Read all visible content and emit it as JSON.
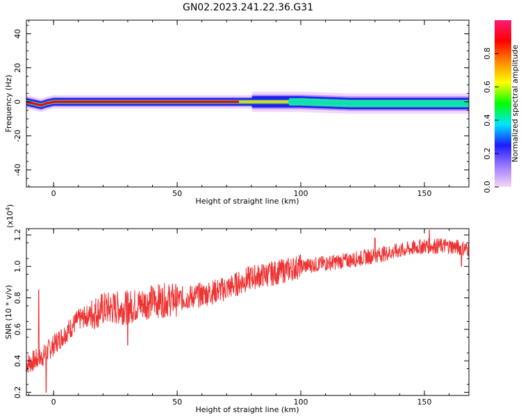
{
  "title": "GN02.2023.241.22.36.G31",
  "chart_data": [
    {
      "type": "heatmap",
      "xlabel": "Height of straight line (km)",
      "ylabel": "Frequency (Hz)",
      "xlim": [
        -11,
        168
      ],
      "ylim": [
        -50,
        48
      ],
      "xticks": [
        0,
        50,
        100,
        150
      ],
      "yticks": [
        40,
        20,
        0,
        -20,
        -40
      ],
      "colorbar": {
        "label": "Normalized spectral amplitude",
        "range": [
          0,
          1
        ],
        "ticks": [
          "0.0",
          "0.2",
          "0.4",
          "0.6",
          "0.8"
        ],
        "colors": [
          "#f7d6f7",
          "#9b7bff",
          "#1c1cff",
          "#00e5ff",
          "#00ff00",
          "#ffff00",
          "#ff8800",
          "#ff0000",
          "#ff1a75"
        ]
      },
      "band": {
        "center_hz": [
          {
            "x": -11,
            "y": 0
          },
          {
            "x": -8,
            "y": -1
          },
          {
            "x": -5,
            "y": -2
          },
          {
            "x": -3,
            "y": -1
          },
          {
            "x": 0,
            "y": 0
          },
          {
            "x": 50,
            "y": 0
          },
          {
            "x": 100,
            "y": 0
          },
          {
            "x": 120,
            "y": -1
          },
          {
            "x": 168,
            "y": -1
          }
        ],
        "peak_color_segments": [
          {
            "from": -11,
            "to": 75,
            "color": "#ff0000"
          },
          {
            "from": 75,
            "to": 95,
            "color": "#ffcc00"
          },
          {
            "from": 95,
            "to": 168,
            "color": "#00e5b0"
          }
        ]
      }
    },
    {
      "type": "line",
      "xlabel": "Height of straight line (km)",
      "ylabel": "SNR (10 * v/v)",
      "yunit": "(x10",
      "yunit_exp": "4",
      "yunit_close": ")",
      "xlim": [
        -11,
        168
      ],
      "ylim": [
        0.18,
        1.24
      ],
      "xticks": [
        0,
        50,
        100,
        150
      ],
      "yticks": [
        1.2,
        1.0,
        0.8,
        0.6,
        0.4,
        0.2
      ],
      "color": "#ee3333",
      "trend": [
        {
          "x": -11,
          "y": 0.38
        },
        {
          "x": -5,
          "y": 0.42
        },
        {
          "x": 0,
          "y": 0.5
        },
        {
          "x": 10,
          "y": 0.66
        },
        {
          "x": 20,
          "y": 0.73
        },
        {
          "x": 30,
          "y": 0.74
        },
        {
          "x": 40,
          "y": 0.78
        },
        {
          "x": 50,
          "y": 0.79
        },
        {
          "x": 60,
          "y": 0.82
        },
        {
          "x": 70,
          "y": 0.86
        },
        {
          "x": 80,
          "y": 0.93
        },
        {
          "x": 90,
          "y": 0.96
        },
        {
          "x": 100,
          "y": 1.0
        },
        {
          "x": 110,
          "y": 1.02
        },
        {
          "x": 120,
          "y": 1.04
        },
        {
          "x": 130,
          "y": 1.07
        },
        {
          "x": 140,
          "y": 1.1
        },
        {
          "x": 150,
          "y": 1.13
        },
        {
          "x": 160,
          "y": 1.13
        },
        {
          "x": 168,
          "y": 1.11
        }
      ],
      "spikes": [
        {
          "x": -6,
          "y": 0.85
        },
        {
          "x": -3,
          "y": 0.2
        },
        {
          "x": 30,
          "y": 0.5
        },
        {
          "x": 130,
          "y": 1.18
        },
        {
          "x": 152,
          "y": 1.23
        },
        {
          "x": 165,
          "y": 1.0
        }
      ]
    }
  ]
}
